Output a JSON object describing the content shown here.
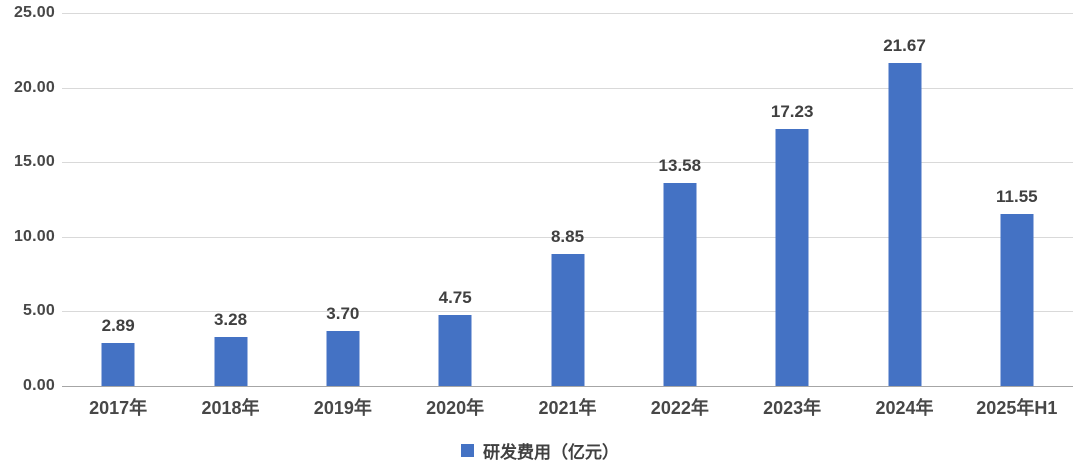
{
  "chart_data": {
    "type": "bar",
    "title": "",
    "categories": [
      "2017年",
      "2018年",
      "2019年",
      "2020年",
      "2021年",
      "2022年",
      "2023年",
      "2024年",
      "2025年H1"
    ],
    "values": [
      2.89,
      3.28,
      3.7,
      4.75,
      8.85,
      13.58,
      17.23,
      21.67,
      11.55
    ],
    "data_labels": [
      "2.89",
      "3.28",
      "3.70",
      "4.75",
      "8.85",
      "13.58",
      "17.23",
      "21.67",
      "11.55"
    ],
    "series": [
      {
        "name": "研发费用（亿元）",
        "values": [
          2.89,
          3.28,
          3.7,
          4.75,
          8.85,
          13.58,
          17.23,
          21.67,
          11.55
        ]
      }
    ],
    "legend_label": "研发费用（亿元）",
    "legend_position": "bottom",
    "xlabel": "",
    "ylabel": "",
    "ylim": [
      0,
      25
    ],
    "ytick_interval": 5,
    "yticks": [
      "25.00",
      "20.00",
      "15.00",
      "10.00",
      "5.00",
      "0.00"
    ],
    "grid": true,
    "colors": {
      "bar": "#4472C4",
      "gridline": "#D9D9D9",
      "axis_line": "#A6A6A6",
      "data_label": "#404040",
      "tick_label": "#474747",
      "background": "#FFFFFF"
    }
  }
}
